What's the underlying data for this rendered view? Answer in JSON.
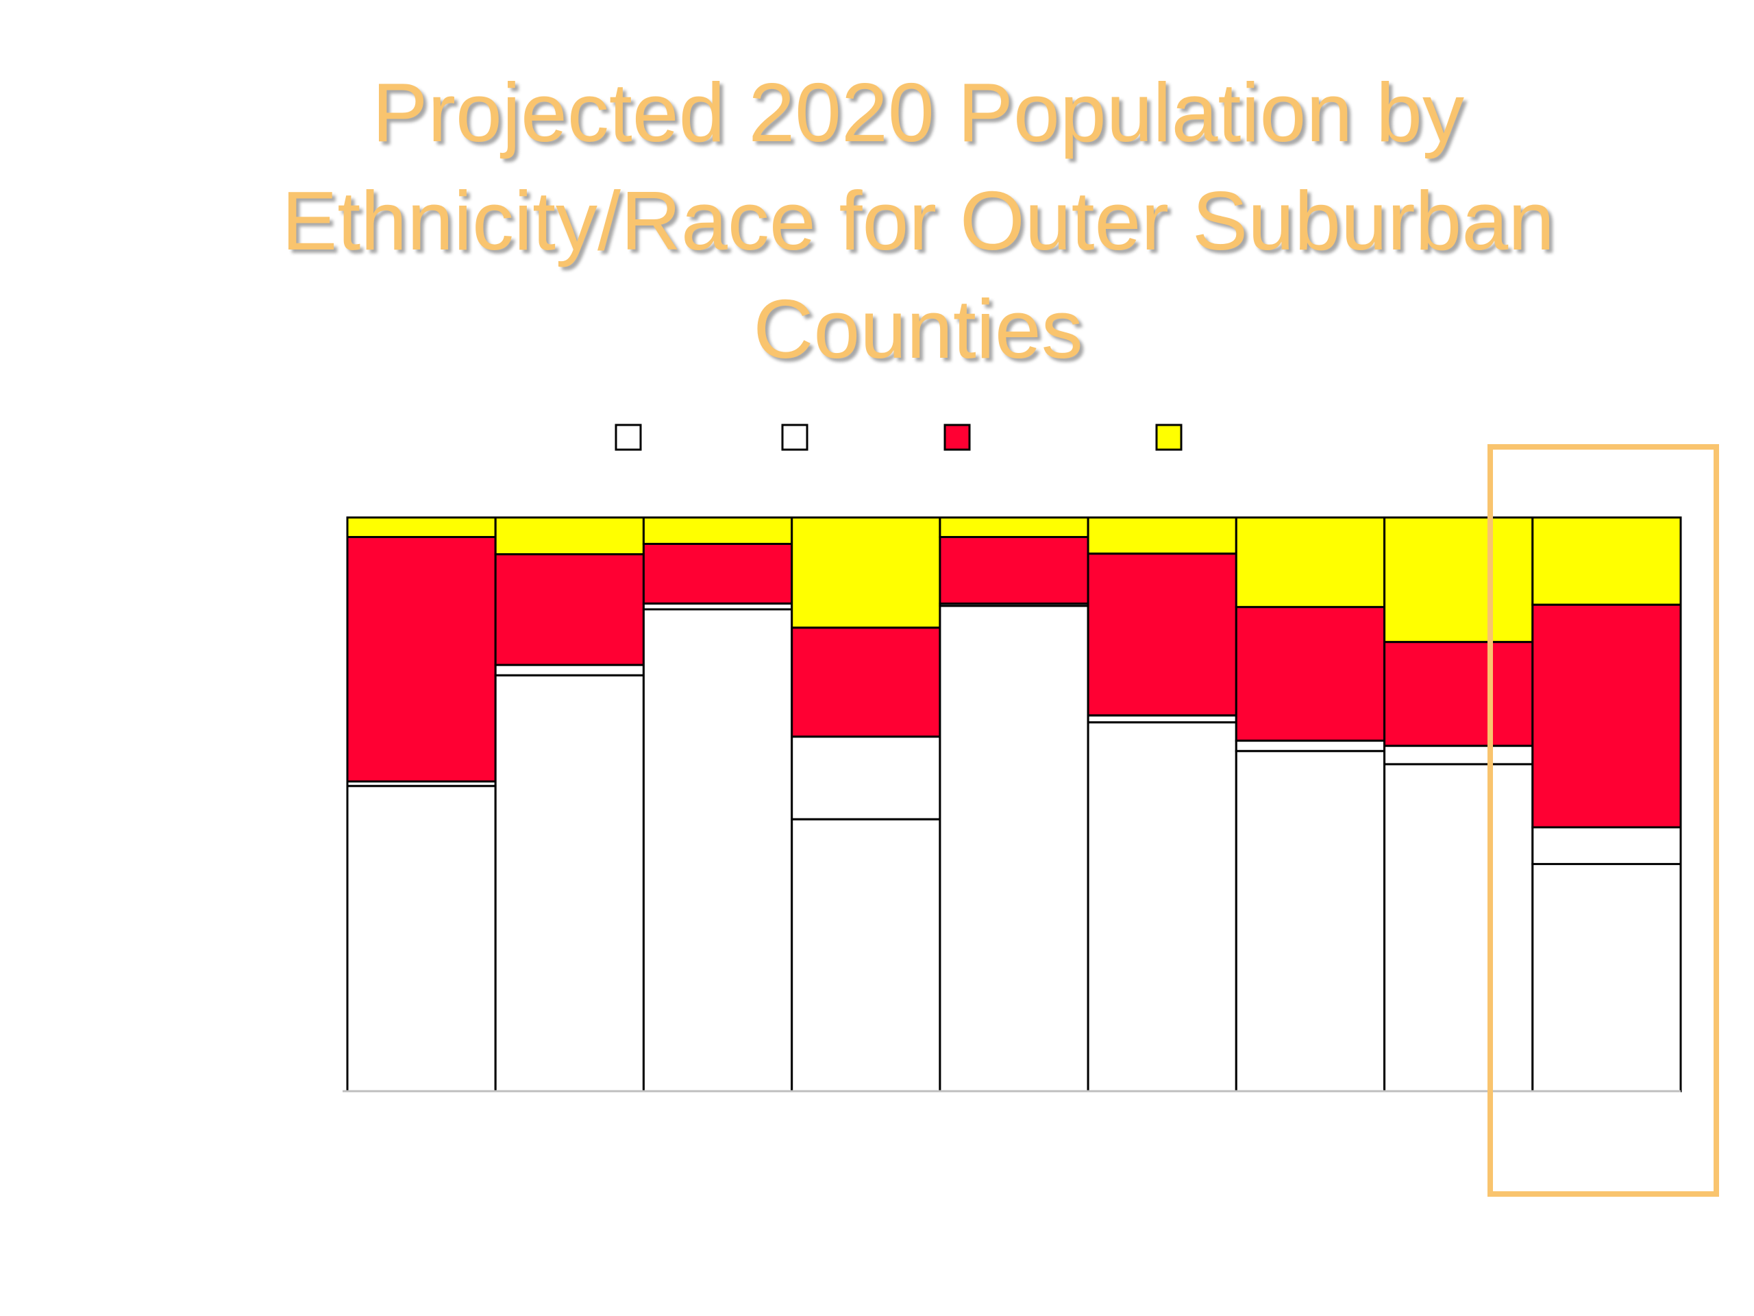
{
  "slide": {
    "title": "Projected 2020 Population by Ethnicity/Race for Outer Suburban Counties"
  },
  "colors": {
    "title": "#F9C46E",
    "highlight": "#F9C46E",
    "series_1": "#FFFFFF",
    "series_2": "#FFFFFF",
    "series_3": "#FF0033",
    "series_4": "#FFFF00",
    "outline": "#000000"
  },
  "chart_data": {
    "type": "bar",
    "stacked": true,
    "normalized": true,
    "title": "Projected 2020 Population by Ethnicity/Race for Outer Suburban Counties",
    "categories": [
      "",
      "",
      "",
      "",
      "",
      "",
      "",
      "",
      ""
    ],
    "ylim": [
      0,
      100
    ],
    "grid": false,
    "legend_position": "top",
    "legend_labels_visible": false,
    "series": [
      {
        "color": "#FFFFFF",
        "values": [
          53.2,
          72.5,
          84.0,
          47.4,
          84.6,
          64.3,
          59.3,
          57.0,
          39.6
        ]
      },
      {
        "color": "#FFFFFF",
        "values": [
          0.8,
          1.8,
          1.0,
          14.4,
          0.4,
          1.2,
          1.8,
          3.2,
          6.4
        ]
      },
      {
        "color": "#FF0033",
        "values": [
          42.6,
          19.3,
          10.4,
          19.0,
          11.6,
          28.2,
          23.3,
          18.1,
          38.8
        ]
      },
      {
        "color": "#FFFF00",
        "values": [
          3.4,
          6.4,
          4.6,
          19.2,
          3.4,
          6.3,
          15.6,
          21.7,
          15.2
        ]
      }
    ],
    "highlighted_category_index": 8
  }
}
